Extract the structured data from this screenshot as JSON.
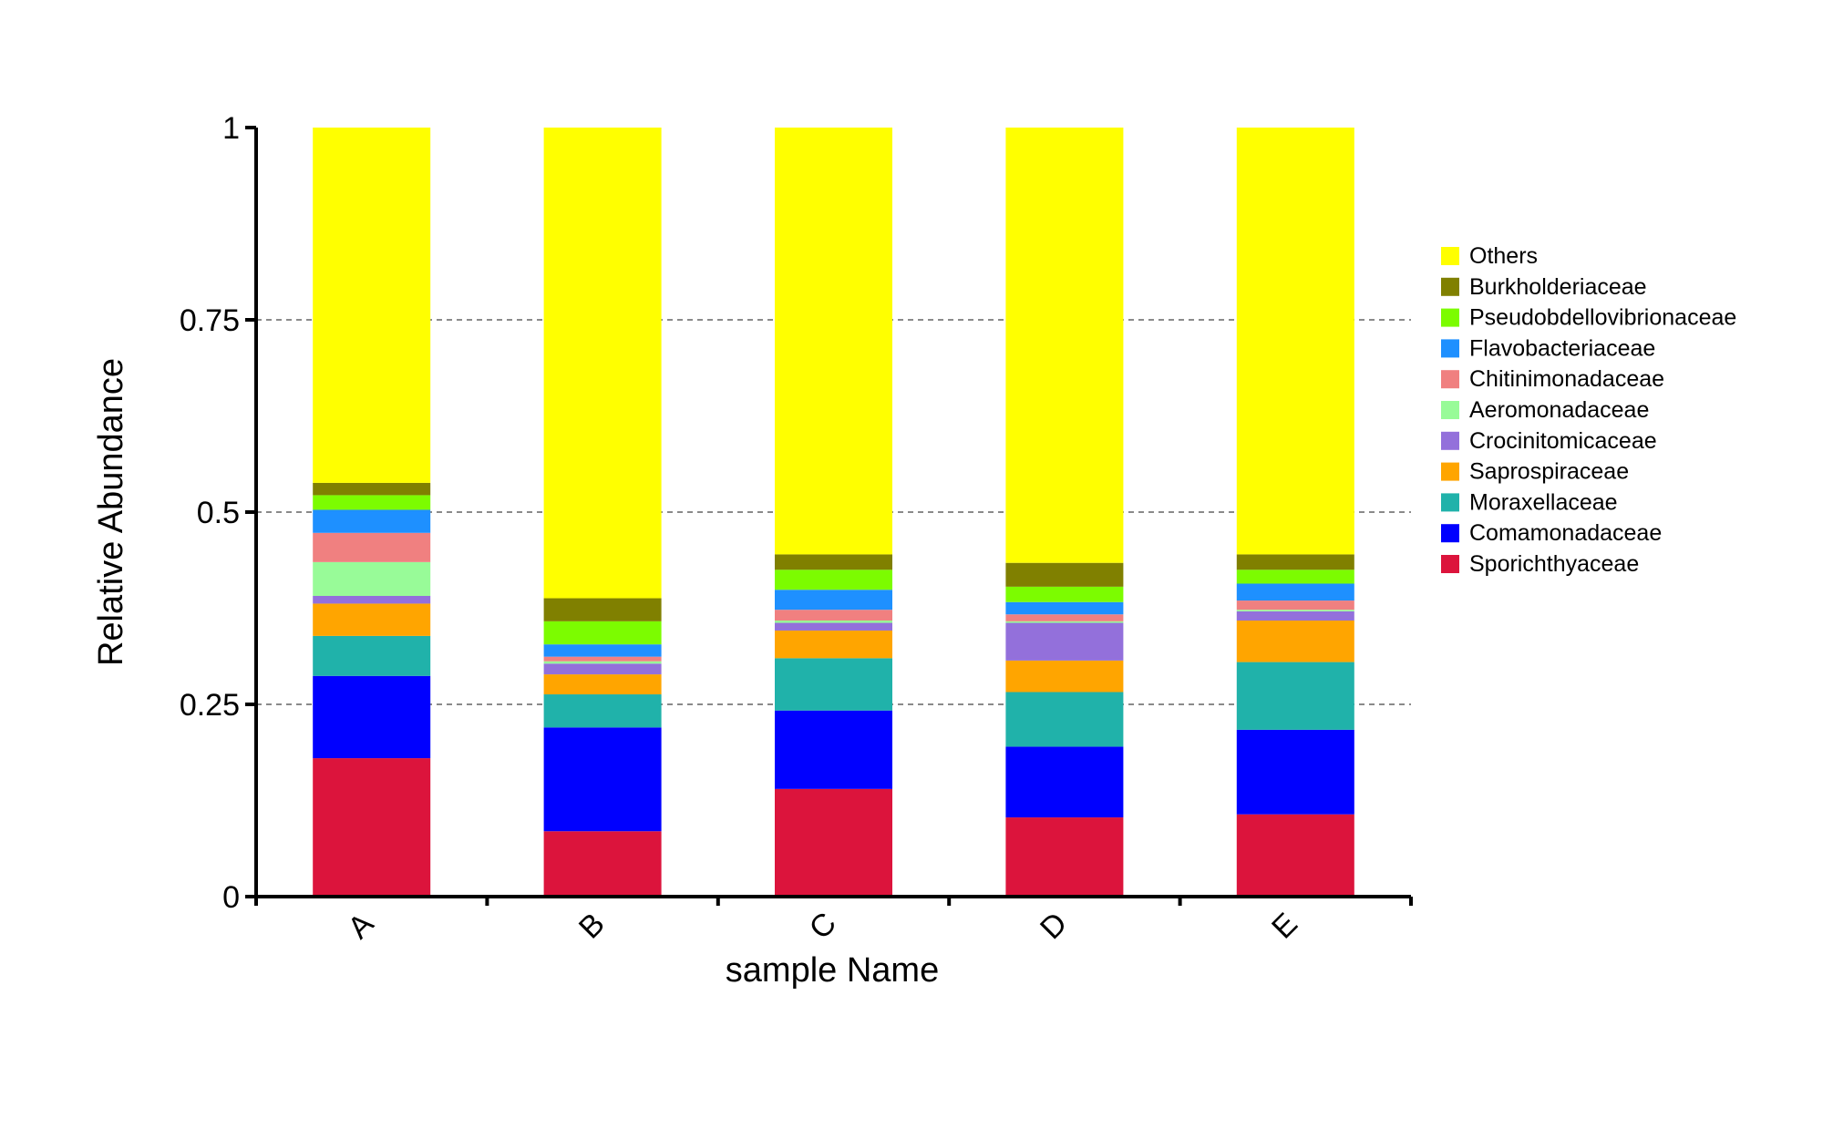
{
  "chart_data": {
    "type": "bar",
    "stacked": true,
    "title": "",
    "xlabel": "sample Name",
    "ylabel": "Relative Abundance",
    "ylim": [
      0,
      1
    ],
    "yticks": [
      0,
      0.25,
      0.5,
      0.75,
      1
    ],
    "ytick_labels": [
      "0",
      "0.25",
      "0.5",
      "0.75",
      "1"
    ],
    "grid": "dashed horizontal at 0.25, 0.5, 0.75",
    "legend_position": "right",
    "categories": [
      "A",
      "B",
      "C",
      "D",
      "E"
    ],
    "series": [
      {
        "name": "Sporichthyaceae",
        "color": "#DC143C",
        "values": [
          0.18,
          0.085,
          0.14,
          0.103,
          0.107
        ]
      },
      {
        "name": "Comamonadaceae",
        "color": "#0000FF",
        "values": [
          0.107,
          0.135,
          0.102,
          0.092,
          0.11
        ]
      },
      {
        "name": "Moraxellaceae",
        "color": "#20B2AA",
        "values": [
          0.052,
          0.043,
          0.068,
          0.071,
          0.088
        ]
      },
      {
        "name": "Saprospiraceae",
        "color": "#FFA500",
        "values": [
          0.042,
          0.026,
          0.036,
          0.041,
          0.054
        ]
      },
      {
        "name": "Crocinitomicaceae",
        "color": "#9370DB",
        "values": [
          0.01,
          0.014,
          0.01,
          0.049,
          0.012
        ]
      },
      {
        "name": "Aeromonadaceae",
        "color": "#98FB98",
        "values": [
          0.044,
          0.003,
          0.003,
          0.002,
          0.002
        ]
      },
      {
        "name": "Chitinimonadaceae",
        "color": "#F08080",
        "values": [
          0.038,
          0.006,
          0.014,
          0.009,
          0.012
        ]
      },
      {
        "name": "Flavobacteriaceae",
        "color": "#1E90FF",
        "values": [
          0.03,
          0.016,
          0.026,
          0.016,
          0.022
        ]
      },
      {
        "name": "Pseudobdellovibrionaceae",
        "color": "#7CFC00",
        "values": [
          0.019,
          0.03,
          0.026,
          0.02,
          0.018
        ]
      },
      {
        "name": "Burkholderiaceae",
        "color": "#808000",
        "values": [
          0.016,
          0.03,
          0.02,
          0.031,
          0.02
        ]
      },
      {
        "name": "Others",
        "color": "#FFFF00",
        "values": [
          0.462,
          0.612,
          0.555,
          0.566,
          0.555
        ]
      }
    ]
  }
}
